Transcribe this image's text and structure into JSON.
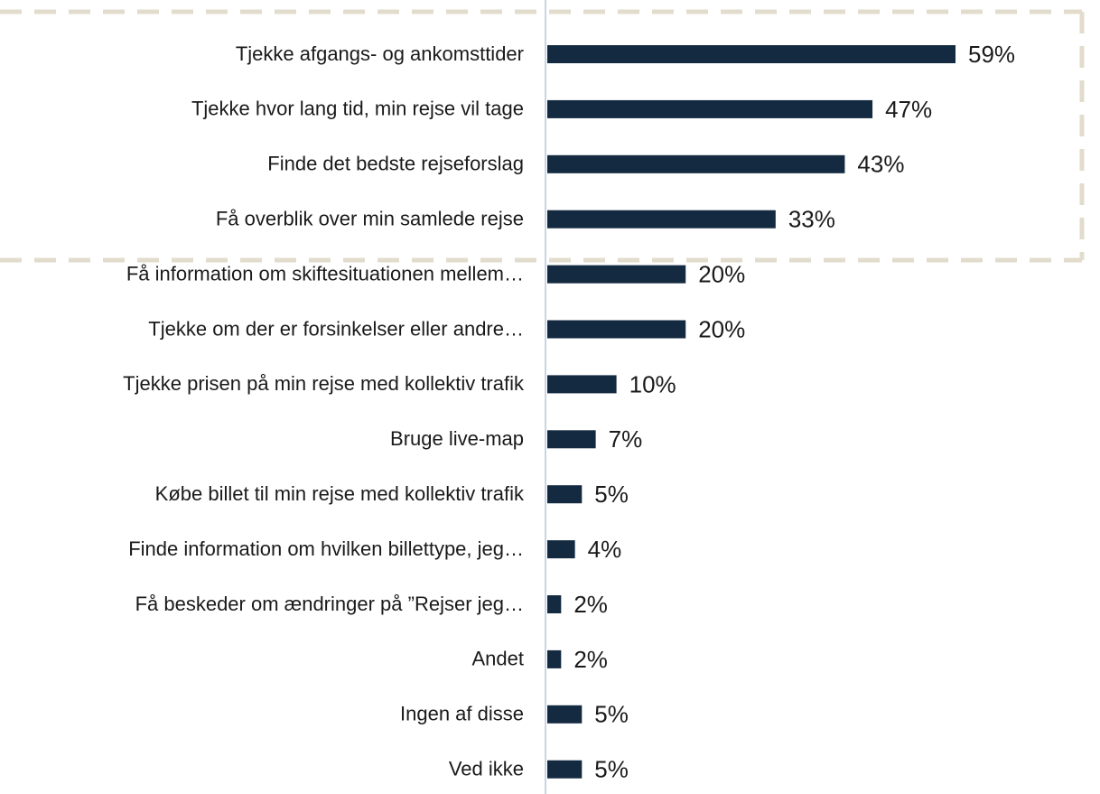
{
  "chart_data": {
    "type": "bar",
    "orientation": "horizontal",
    "categories": [
      "Tjekke afgangs- og ankomsttider",
      "Tjekke hvor lang tid, min rejse vil tage",
      "Finde det bedste rejseforslag",
      "Få overblik over min samlede rejse",
      "Få information om skiftesituationen mellem…",
      "Tjekke om der er forsinkelser eller andre…",
      "Tjekke prisen på min rejse med kollektiv trafik",
      "Bruge live-map",
      "Købe billet til min rejse med kollektiv trafik",
      "Finde information om hvilken billettype, jeg…",
      "Få beskeder om ændringer på ”Rejser jeg…",
      "Andet",
      "Ingen af disse",
      "Ved ikke"
    ],
    "values": [
      59,
      47,
      43,
      33,
      20,
      20,
      10,
      7,
      5,
      4,
      2,
      2,
      5,
      5
    ],
    "value_labels": [
      "59%",
      "47%",
      "43%",
      "33%",
      "20%",
      "20%",
      "10%",
      "7%",
      "5%",
      "4%",
      "2%",
      "2%",
      "5%",
      "5%"
    ],
    "color": "#142a40"
  }
}
